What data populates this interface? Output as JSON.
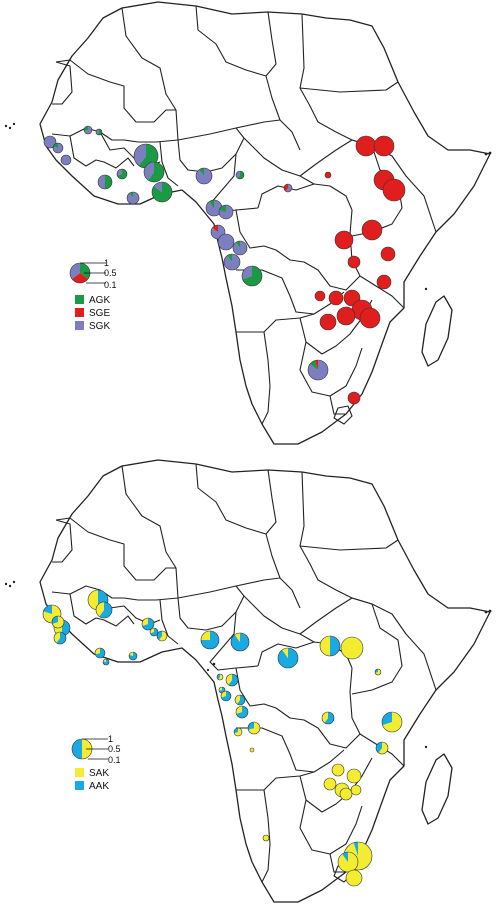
{
  "colors": {
    "AGK": "#1a9a45",
    "SGE": "#e01e1e",
    "SGK": "#7b7fc0",
    "SAK": "#f4ec30",
    "AAK": "#19a9e3"
  },
  "map1": {
    "legend": {
      "items": [
        {
          "label": "AGK",
          "color": "#1a9a45"
        },
        {
          "label": "SGE",
          "color": "#e01e1e"
        },
        {
          "label": "SGK",
          "color": "#7b7fc0"
        }
      ],
      "scale": [
        "1",
        "0.5",
        "0.1"
      ]
    }
  },
  "map2": {
    "legend": {
      "items": [
        {
          "label": "SAK",
          "color": "#f4ec30"
        },
        {
          "label": "AAK",
          "color": "#19a9e3"
        }
      ],
      "scale": [
        "1",
        "0.5",
        "0.1"
      ]
    }
  }
}
